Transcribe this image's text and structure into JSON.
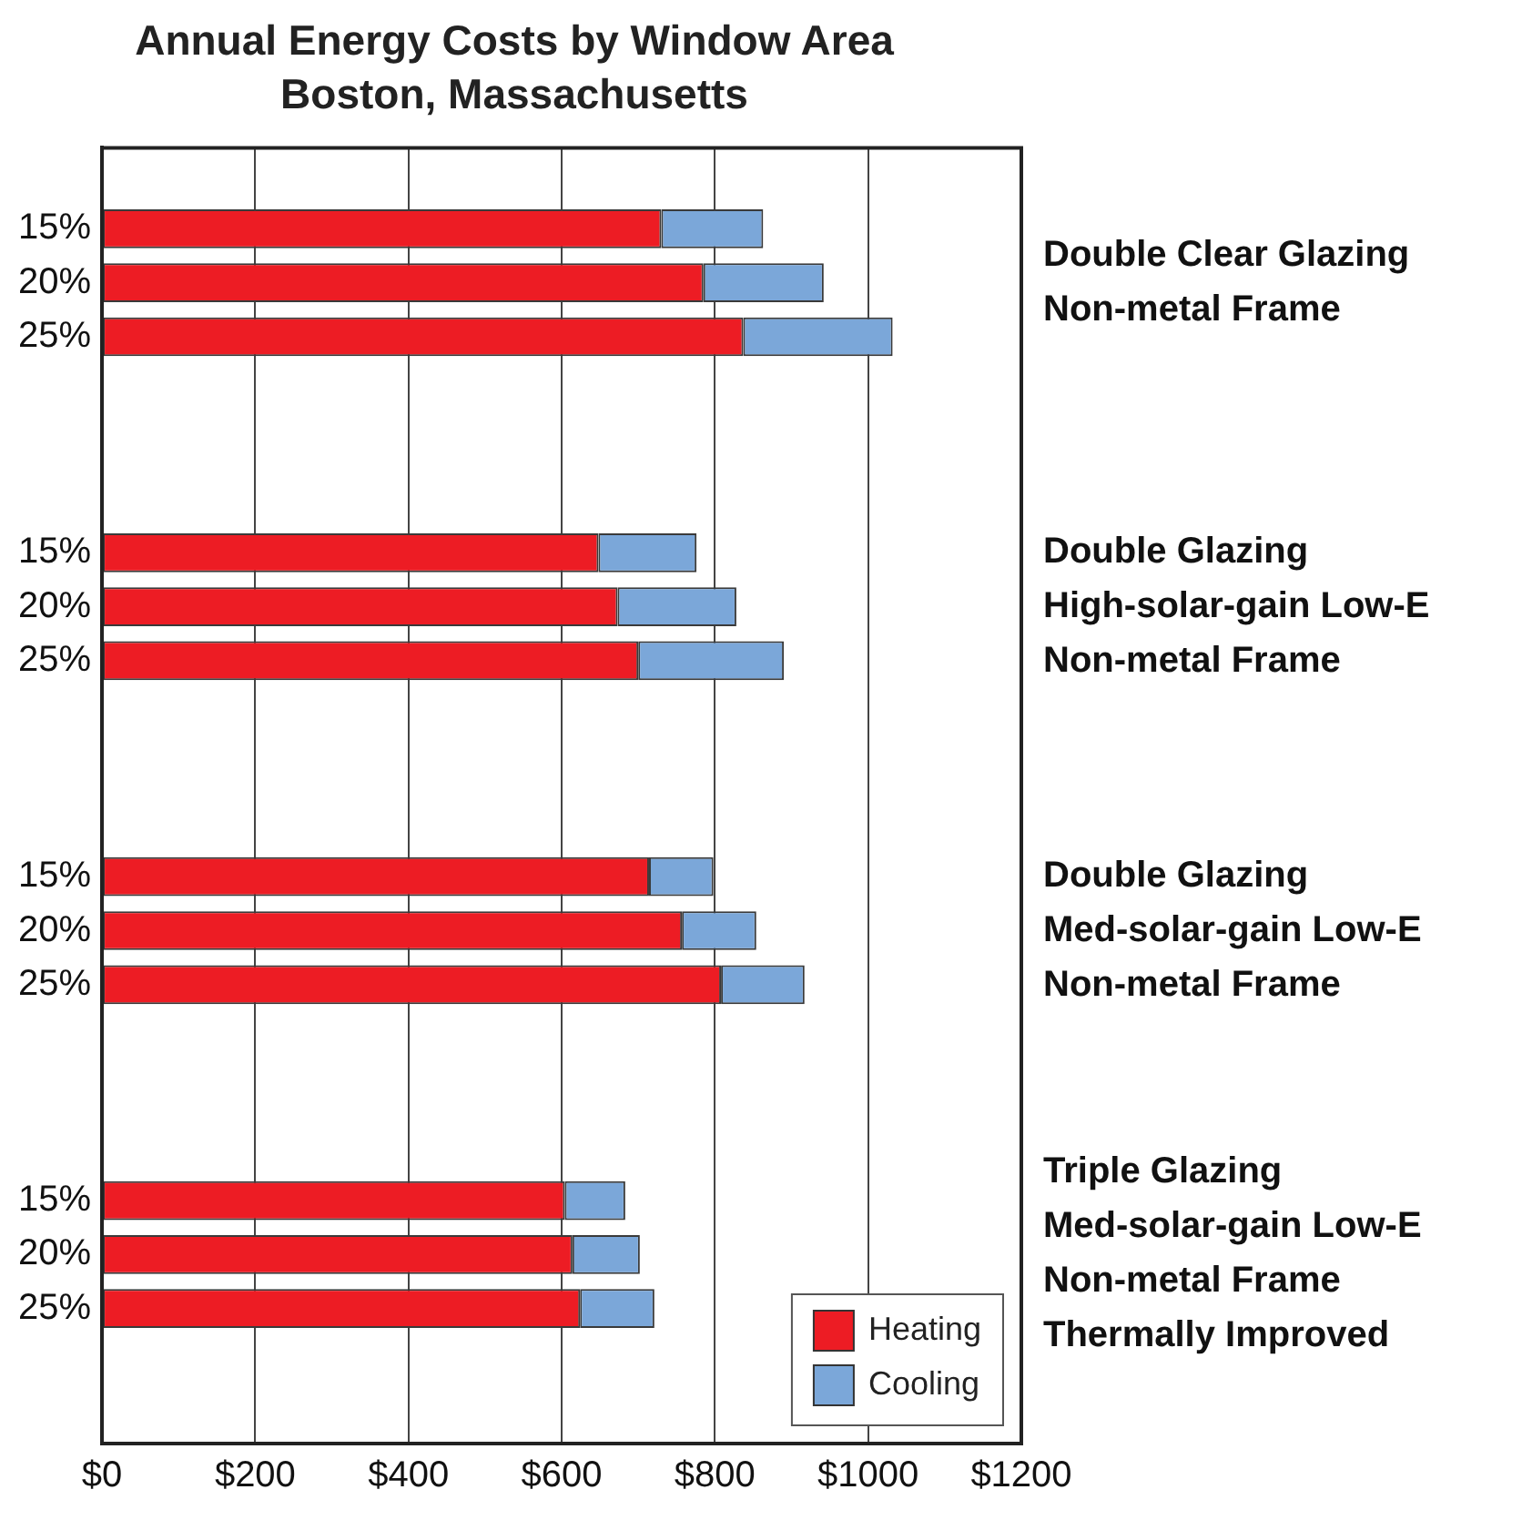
{
  "chart_data": {
    "type": "bar",
    "orientation": "horizontal",
    "stacked": true,
    "title": "Annual Energy Costs by Window Area",
    "subtitle": "Boston, Massachusetts",
    "categories": [
      null,
      "15%",
      "20%",
      "25%",
      null,
      null,
      null,
      "15%",
      "20%",
      "25%",
      null,
      null,
      null,
      "15%",
      "20%",
      "25%",
      null,
      null,
      null,
      "15%",
      "20%",
      "25%",
      null,
      null
    ],
    "series": [
      {
        "name": "Heating",
        "color": "#ed1c24",
        "values": [
          null,
          730,
          785,
          837,
          null,
          null,
          null,
          648,
          673,
          700,
          null,
          null,
          null,
          714,
          757,
          808,
          null,
          null,
          null,
          604,
          614,
          624,
          null,
          null
        ]
      },
      {
        "name": "Cooling",
        "color": "#7ba7d9",
        "values": [
          null,
          133,
          157,
          195,
          null,
          null,
          null,
          128,
          155,
          190,
          null,
          null,
          null,
          84,
          97,
          109,
          null,
          null,
          null,
          79,
          88,
          97,
          null,
          null
        ]
      }
    ],
    "xlim": [
      0,
      1200
    ],
    "xticks": [
      {
        "value": 0,
        "label": "$0"
      },
      {
        "value": 200,
        "label": "$200"
      },
      {
        "value": 400,
        "label": "$400"
      },
      {
        "value": 600,
        "label": "$600"
      },
      {
        "value": 800,
        "label": "$800"
      },
      {
        "value": 1000,
        "label": "$1000"
      },
      {
        "value": 1200,
        "label": "$1200"
      }
    ],
    "grid": "x",
    "legend": "bottom right",
    "annotations": [
      "Double Clear Glazing\nNon-metal Frame",
      "Double Glazing\nHigh-solar-gain Low-E\nNon-metal Frame",
      "Double Glazing\nMed-solar-gain Low-E\nNon-metal Frame",
      "Triple Glazing\nMed-solar-gain Low-E\nNon-metal Frame\nThermally Improved"
    ]
  }
}
